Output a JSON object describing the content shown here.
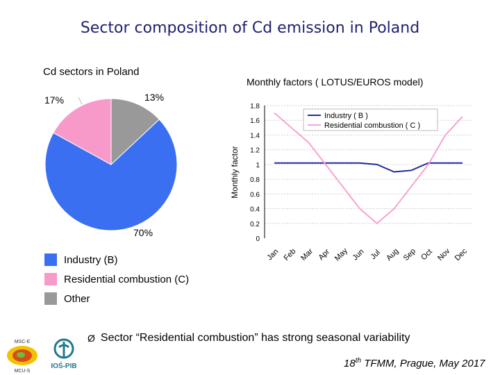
{
  "slide": {
    "title": "Sector composition of Cd emission in Poland",
    "footnote_arrow": "Ø",
    "footnote": "Sector “Residential combustion” has strong seasonal variability",
    "conference_prefix": "18",
    "conference_sup": "th",
    "conference_suffix": " TFMM, Prague, May 2017",
    "logo_left_top": "MSC-E",
    "logo_left_bottom": "MCU-S",
    "logo_right": "IOŚ-PIB"
  },
  "colors": {
    "title": "#1f1f6e",
    "industry": "#3a6ff2",
    "residential": "#f79ac9",
    "other": "#999999",
    "industry_line": "#1f2a9e",
    "residential_line": "#f7a3d1"
  },
  "chart_data": [
    {
      "type": "pie",
      "title": "Cd sectors in Poland",
      "slices": [
        {
          "label": "Industry (B)",
          "value": 70,
          "text": "70%",
          "color": "#3a6ff2"
        },
        {
          "label": "Residential combustion (C)",
          "value": 17,
          "text": "17%",
          "color": "#f79ac9"
        },
        {
          "label": "Other",
          "value": 13,
          "text": "13%",
          "color": "#999999"
        }
      ]
    },
    {
      "type": "line",
      "title": "Monthly factors ( LOTUS/EUROS model)",
      "ylabel": "Monthly factor",
      "xlabel": "",
      "ylim": [
        0,
        1.8
      ],
      "yticks": [
        "0",
        "0.2",
        "0.4",
        "0.6",
        "0.8",
        "1",
        "1.2",
        "1.4",
        "1.6",
        "1.8"
      ],
      "categories": [
        "Jan",
        "Feb",
        "Mar",
        "Apr",
        "May",
        "Jun",
        "Jul",
        "Aug",
        "Sep",
        "Oct",
        "Nov",
        "Dec"
      ],
      "series": [
        {
          "name": "Industry ( B )",
          "values": [
            1.02,
            1.02,
            1.02,
            1.02,
            1.02,
            1.02,
            1.0,
            0.9,
            0.92,
            1.02,
            1.02,
            1.02
          ],
          "color": "#1f2a9e"
        },
        {
          "name": "Residential combustion ( C )",
          "values": [
            1.7,
            1.5,
            1.3,
            1.0,
            0.7,
            0.4,
            0.2,
            0.4,
            0.7,
            1.0,
            1.4,
            1.65
          ],
          "color": "#f7a3d1"
        }
      ],
      "grid": true
    }
  ]
}
